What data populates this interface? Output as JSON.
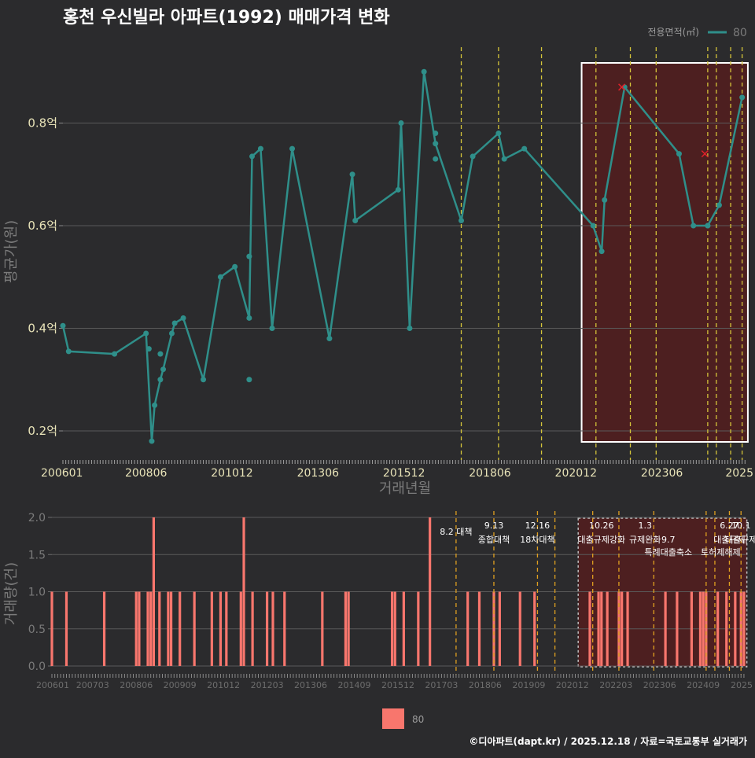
{
  "title": "홍천 우신빌라 아파트(1992) 매매가격 변화",
  "footer": "©디아파트(dapt.kr) / 2025.12.18 / 자료=국토교통부 실거래가",
  "colors": {
    "background": "#2b2b2d",
    "price_line": "#2f8f8a",
    "volume_bar": "#f8766d",
    "policy_line": "#d4c43a",
    "highlight_fill": "#5a1c1c",
    "grid": "#5a5a5a"
  },
  "chart_data": [
    {
      "type": "line",
      "title": "홍천 우신빌라 아파트(1992) 매매가격 변화",
      "xlabel": "거래년월",
      "ylabel": "평균가(원)",
      "ylim": [
        0.15,
        0.93
      ],
      "y_unit": "억",
      "yticks": [
        0.2,
        0.4,
        0.6,
        0.8
      ],
      "ytick_labels": [
        "0.2억",
        "0.4억",
        "0.6억",
        "0.8억"
      ],
      "xticks": [
        "200601",
        "200806",
        "201012",
        "201306",
        "201512",
        "201806",
        "202012",
        "202306",
        "2025"
      ],
      "legend_title": "전용면적(㎡)",
      "series": [
        {
          "name": "80",
          "line": [
            {
              "x": "200601",
              "y": 0.405
            },
            {
              "x": "200603",
              "y": 0.355
            },
            {
              "x": "200707",
              "y": 0.35
            },
            {
              "x": "200806",
              "y": 0.39
            },
            {
              "x": "200808",
              "y": 0.18
            },
            {
              "x": "200809",
              "y": 0.25
            },
            {
              "x": "200811",
              "y": 0.3
            },
            {
              "x": "200812",
              "y": 0.32
            },
            {
              "x": "200903",
              "y": 0.39
            },
            {
              "x": "200904",
              "y": 0.41
            },
            {
              "x": "200907",
              "y": 0.42
            },
            {
              "x": "201002",
              "y": 0.3
            },
            {
              "x": "201008",
              "y": 0.5
            },
            {
              "x": "201101",
              "y": 0.52
            },
            {
              "x": "201106",
              "y": 0.42
            },
            {
              "x": "201107",
              "y": 0.735
            },
            {
              "x": "201110",
              "y": 0.75
            },
            {
              "x": "201202",
              "y": 0.4
            },
            {
              "x": "201209",
              "y": 0.75
            },
            {
              "x": "201310",
              "y": 0.38
            },
            {
              "x": "201406",
              "y": 0.7
            },
            {
              "x": "201407",
              "y": 0.61
            },
            {
              "x": "201510",
              "y": 0.67
            },
            {
              "x": "201511",
              "y": 0.8
            },
            {
              "x": "201602",
              "y": 0.4
            },
            {
              "x": "201607",
              "y": 0.9
            },
            {
              "x": "201611",
              "y": 0.76
            },
            {
              "x": "201708",
              "y": 0.61
            },
            {
              "x": "201712",
              "y": 0.735
            },
            {
              "x": "201809",
              "y": 0.78
            },
            {
              "x": "201811",
              "y": 0.73
            },
            {
              "x": "201906",
              "y": 0.75
            },
            {
              "x": "202106",
              "y": 0.6
            },
            {
              "x": "202109",
              "y": 0.55
            },
            {
              "x": "202110",
              "y": 0.65
            },
            {
              "x": "202205",
              "y": 0.87
            },
            {
              "x": "202312",
              "y": 0.74
            },
            {
              "x": "202405",
              "y": 0.6
            },
            {
              "x": "202410",
              "y": 0.6
            },
            {
              "x": "202502",
              "y": 0.64
            },
            {
              "x": "202510",
              "y": 0.85
            }
          ],
          "extra_points": [
            {
              "x": "200807",
              "y": 0.36
            },
            {
              "x": "200811",
              "y": 0.35
            },
            {
              "x": "201106",
              "y": 0.54
            },
            {
              "x": "201106",
              "y": 0.3
            },
            {
              "x": "201611",
              "y": 0.78
            },
            {
              "x": "201611",
              "y": 0.73
            },
            {
              "x": "202410",
              "y": 0.6
            }
          ],
          "cancelled": [
            {
              "x": "202204",
              "y": 0.87
            },
            {
              "x": "202409",
              "y": 0.74
            }
          ]
        }
      ],
      "policy_lines": [
        "201708",
        "201809",
        "201912",
        "202107",
        "202207",
        "202304",
        "202410",
        "202501",
        "202506",
        "202510"
      ],
      "highlight_range": [
        "202102",
        "202512"
      ]
    },
    {
      "type": "bar",
      "xlabel": "",
      "ylabel": "거래량(건)",
      "ylim": [
        0,
        2
      ],
      "yticks": [
        0.0,
        0.5,
        1.0,
        1.5,
        2.0
      ],
      "ytick_labels": [
        "0.0",
        "0.5",
        "1.0",
        "1.5",
        "2.0"
      ],
      "xticks": [
        "200601",
        "200703",
        "200806",
        "200909",
        "201012",
        "201203",
        "201306",
        "201409",
        "201512",
        "201703",
        "201806",
        "201909",
        "202012",
        "202203",
        "202306",
        "202409",
        "2025"
      ],
      "legend": [
        "80"
      ],
      "bars": [
        {
          "x": "200601",
          "v": 1
        },
        {
          "x": "200606",
          "v": 1
        },
        {
          "x": "200707",
          "v": 1
        },
        {
          "x": "200806",
          "v": 1
        },
        {
          "x": "200807",
          "v": 1
        },
        {
          "x": "200810",
          "v": 1
        },
        {
          "x": "200811",
          "v": 1
        },
        {
          "x": "200812",
          "v": 2
        },
        {
          "x": "200902",
          "v": 1
        },
        {
          "x": "200905",
          "v": 1
        },
        {
          "x": "200906",
          "v": 1
        },
        {
          "x": "200909",
          "v": 1
        },
        {
          "x": "201002",
          "v": 1
        },
        {
          "x": "201008",
          "v": 1
        },
        {
          "x": "201011",
          "v": 1
        },
        {
          "x": "201101",
          "v": 1
        },
        {
          "x": "201106",
          "v": 1
        },
        {
          "x": "201107",
          "v": 2
        },
        {
          "x": "201110",
          "v": 1
        },
        {
          "x": "201203",
          "v": 1
        },
        {
          "x": "201205",
          "v": 1
        },
        {
          "x": "201209",
          "v": 1
        },
        {
          "x": "201310",
          "v": 1
        },
        {
          "x": "201406",
          "v": 1
        },
        {
          "x": "201407",
          "v": 1
        },
        {
          "x": "201510",
          "v": 1
        },
        {
          "x": "201511",
          "v": 1
        },
        {
          "x": "201602",
          "v": 1
        },
        {
          "x": "201607",
          "v": 1
        },
        {
          "x": "201611",
          "v": 2
        },
        {
          "x": "201712",
          "v": 1
        },
        {
          "x": "201804",
          "v": 1
        },
        {
          "x": "201809",
          "v": 1
        },
        {
          "x": "201811",
          "v": 1
        },
        {
          "x": "201906",
          "v": 1
        },
        {
          "x": "201911",
          "v": 1
        },
        {
          "x": "202106",
          "v": 1
        },
        {
          "x": "202109",
          "v": 1
        },
        {
          "x": "202110",
          "v": 1
        },
        {
          "x": "202112",
          "v": 1
        },
        {
          "x": "202204",
          "v": 1
        },
        {
          "x": "202205",
          "v": 1
        },
        {
          "x": "202207",
          "v": 1
        },
        {
          "x": "202308",
          "v": 1
        },
        {
          "x": "202312",
          "v": 1
        },
        {
          "x": "202405",
          "v": 1
        },
        {
          "x": "202408",
          "v": 1
        },
        {
          "x": "202409",
          "v": 1
        },
        {
          "x": "202410",
          "v": 1
        },
        {
          "x": "202502",
          "v": 1
        },
        {
          "x": "202505",
          "v": 1
        },
        {
          "x": "202508",
          "v": 1
        },
        {
          "x": "202510",
          "v": 1
        },
        {
          "x": "202511",
          "v": 1
        }
      ],
      "policy_lines": [
        "201708",
        "201809",
        "201912",
        "202006",
        "202107",
        "202204",
        "202304",
        "202410",
        "202501",
        "202506",
        "202510"
      ],
      "annotations": [
        {
          "x": "201708",
          "row": 2,
          "text": "8.2 대책"
        },
        {
          "x": "201809",
          "row": 0,
          "text": "9.13"
        },
        {
          "x": "201809",
          "row": 3,
          "text": "종합대책"
        },
        {
          "x": "201912",
          "row": 0,
          "text": "12.16"
        },
        {
          "x": "201912",
          "row": 3,
          "text": "18차대책"
        },
        {
          "x": "202110",
          "row": 0,
          "text": "10.26"
        },
        {
          "x": "202110",
          "row": 3,
          "text": "대출규제강화"
        },
        {
          "x": "202301",
          "row": 0,
          "text": "1.3"
        },
        {
          "x": "202301",
          "row": 3,
          "text": "규제완화"
        },
        {
          "x": "202309",
          "row": 3,
          "text": "9.7"
        },
        {
          "x": "202309",
          "row": 4,
          "text": "특례대출축소"
        },
        {
          "x": "202503",
          "row": 4,
          "text": "토허제해제"
        },
        {
          "x": "202506",
          "row": 0,
          "text": "6.27"
        },
        {
          "x": "202506",
          "row": 3,
          "text": "대출규제"
        },
        {
          "x": "202510",
          "row": 0,
          "text": "10.1"
        },
        {
          "x": "202510",
          "row": 3,
          "text": "대출규제"
        }
      ],
      "highlight_range": [
        "202102",
        "202512"
      ]
    }
  ]
}
